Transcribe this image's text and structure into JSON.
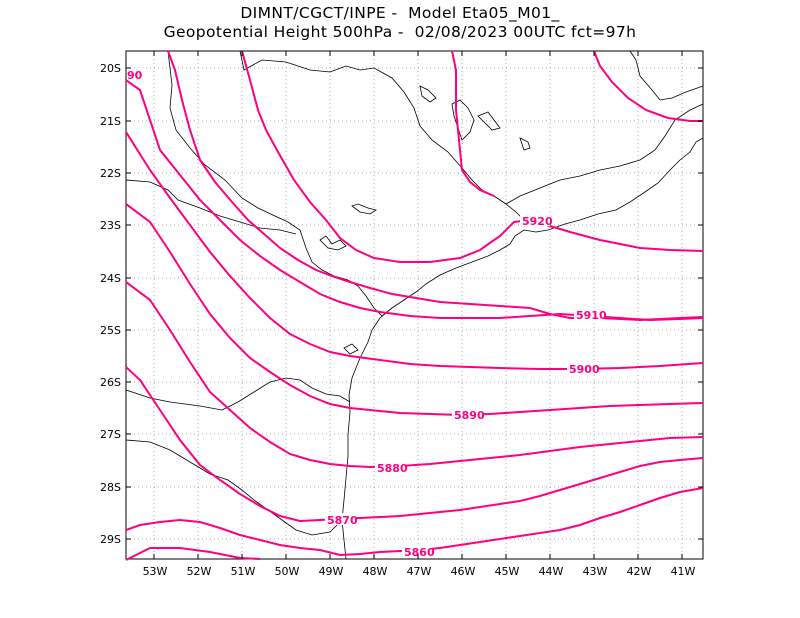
{
  "header": {
    "line1": "DIMNT/CGCT/INPE -  Model Eta05_M01_",
    "line2": "Geopotential Height 500hPa -  02/08/2023 00UTC fct=97h"
  },
  "axes": {
    "lat_labels": [
      "20S",
      "21S",
      "22S",
      "23S",
      "24S",
      "25S",
      "26S",
      "27S",
      "28S",
      "29S"
    ],
    "lon_labels": [
      "53W",
      "52W",
      "51W",
      "50W",
      "49W",
      "48W",
      "47W",
      "46W",
      "45W",
      "44W",
      "43W",
      "42W",
      "41W"
    ],
    "lon_range": [
      "53.6W",
      "40.5W"
    ],
    "lat_range": [
      "19.7S",
      "29.4S"
    ]
  },
  "contours": {
    "color": "#ff0080",
    "levels": [
      "5860",
      "5870",
      "5880",
      "5890",
      "5900",
      "5910",
      "5920"
    ],
    "edge_label": "90"
  },
  "map": {
    "grid": "dotted",
    "coastline_color": "#000000"
  }
}
